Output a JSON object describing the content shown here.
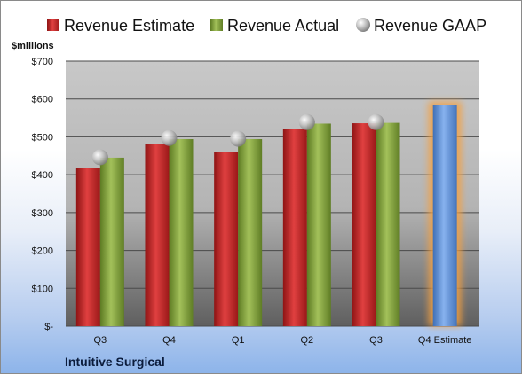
{
  "chart_data": {
    "type": "bar",
    "unit_label": "$millions",
    "company": "Intuitive Surgical",
    "categories": [
      "Q3",
      "Q4",
      "Q1",
      "Q2",
      "Q3",
      "Q4 Estimate"
    ],
    "ylim": [
      0,
      700
    ],
    "yticks": [
      0,
      100,
      200,
      300,
      400,
      500,
      600,
      700
    ],
    "ytick_labels": [
      "$-",
      "$100",
      "$200",
      "$300",
      "$400",
      "$500",
      "$600",
      "$700"
    ],
    "grid": true,
    "legend_position": "top",
    "series": [
      {
        "name": "Revenue Estimate",
        "kind": "bar",
        "color": "#cc2a2a",
        "values": [
          418,
          482,
          461,
          522,
          536,
          null
        ]
      },
      {
        "name": "Revenue Actual",
        "kind": "bar",
        "color": "#7f9e3a",
        "values": [
          445,
          494,
          494,
          535,
          537,
          null
        ]
      },
      {
        "name": "Revenue GAAP",
        "kind": "marker",
        "color": "#b8b8b8",
        "values": [
          446,
          497,
          495,
          539,
          539,
          null
        ]
      }
    ],
    "estimate_bar": {
      "category": "Q4 Estimate",
      "value": 583,
      "color": "#5b8fd6",
      "highlight_color": "#f5a040"
    }
  }
}
